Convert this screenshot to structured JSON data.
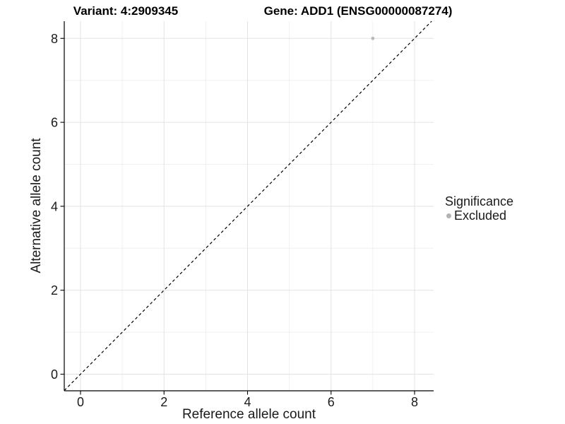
{
  "chart_data": {
    "type": "scatter",
    "variant_title": "Variant: 4:2909345",
    "gene_title": "Gene: ADD1 (ENSG00000087274)",
    "xlabel": "Reference allele count",
    "ylabel": "Alternative allele count",
    "x_ticks": [
      0,
      2,
      4,
      6,
      8
    ],
    "y_ticks": [
      0,
      2,
      4,
      6,
      8
    ],
    "minor_gridlines": [
      1,
      3,
      5,
      7
    ],
    "xlim": [
      -0.39,
      8.46
    ],
    "ylim": [
      -0.42,
      8.41
    ],
    "grid": "on",
    "points": [
      {
        "x": 7,
        "y": 8,
        "series": "Excluded"
      }
    ],
    "reference_line": {
      "kind": "identity",
      "slope": 1,
      "intercept": 0,
      "style": "dashed"
    },
    "legend": {
      "title": "Significance",
      "position": "right",
      "items": [
        {
          "label": "Excluded",
          "color": "#b3b3b3",
          "marker": "circle"
        }
      ]
    },
    "colors": {
      "background": "#ffffff",
      "grid_major": "#e3e3e3",
      "grid_minor": "#f0f0f0",
      "axis": "#000000",
      "reference_line": "#000000",
      "point": "#b9b9b9",
      "text": "#1a1a1a"
    }
  }
}
